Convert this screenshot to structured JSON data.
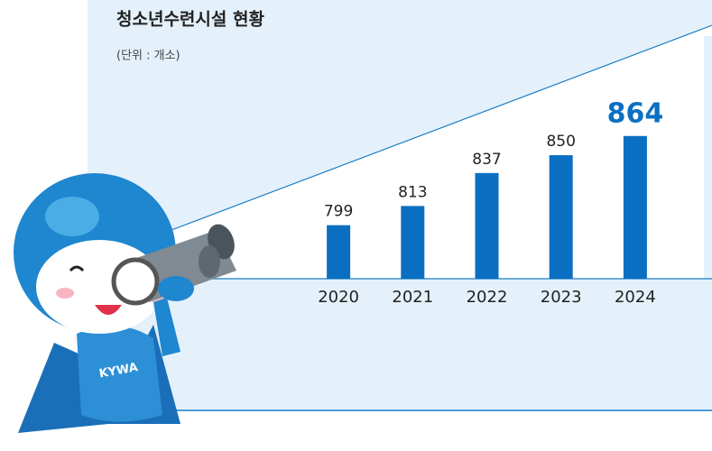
{
  "chart_data": {
    "type": "bar",
    "title": "청소년수련시설 현황",
    "subtitle": "(단위 : 개소)",
    "categories": [
      "2020",
      "2021",
      "2022",
      "2023",
      "2024"
    ],
    "values": [
      799,
      813,
      837,
      850,
      864
    ],
    "color": "#0a6fc2",
    "ylim": [
      760,
      900
    ]
  }
}
